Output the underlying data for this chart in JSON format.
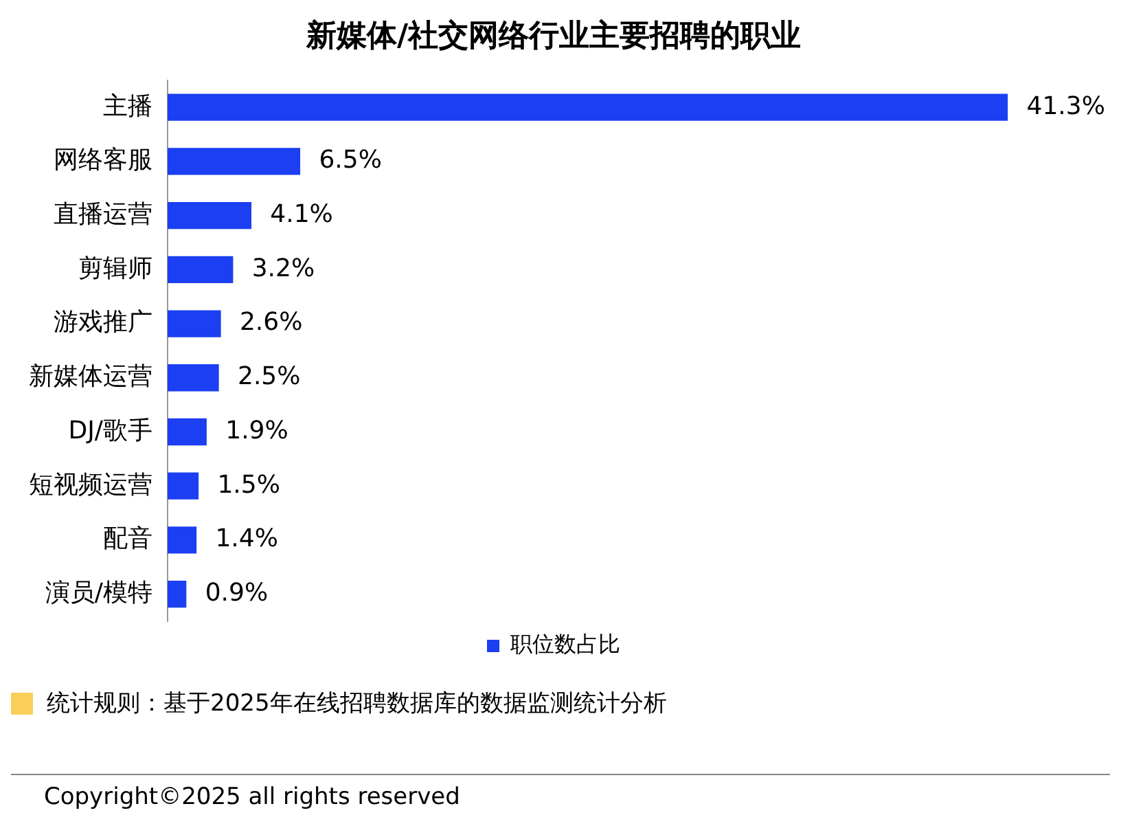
{
  "chart_data": {
    "type": "bar",
    "orientation": "horizontal",
    "title": "新媒体/社交网络行业主要招聘的职业",
    "categories": [
      "主播",
      "网络客服",
      "直播运营",
      "剪辑师",
      "游戏推广",
      "新媒体运营",
      "DJ/歌手",
      "短视频运营",
      "配音",
      "演员/模特"
    ],
    "series": [
      {
        "name": "职位数占比",
        "color": "#1c3ff2",
        "values": [
          41.3,
          6.5,
          4.1,
          3.2,
          2.6,
          2.5,
          1.9,
          1.5,
          1.4,
          0.9
        ],
        "value_labels": [
          "41.3%",
          "6.5%",
          "4.1%",
          "3.2%",
          "2.6%",
          "2.5%",
          "1.9%",
          "1.5%",
          "1.4%",
          "0.9%"
        ]
      }
    ],
    "legend": "bottom",
    "tick_labels": "y",
    "grid": false,
    "annotations": [
      "统计规则：基于2025年在线招聘数据库的数据监测统计分析",
      "Copyright©2025 all rights reserved"
    ]
  }
}
